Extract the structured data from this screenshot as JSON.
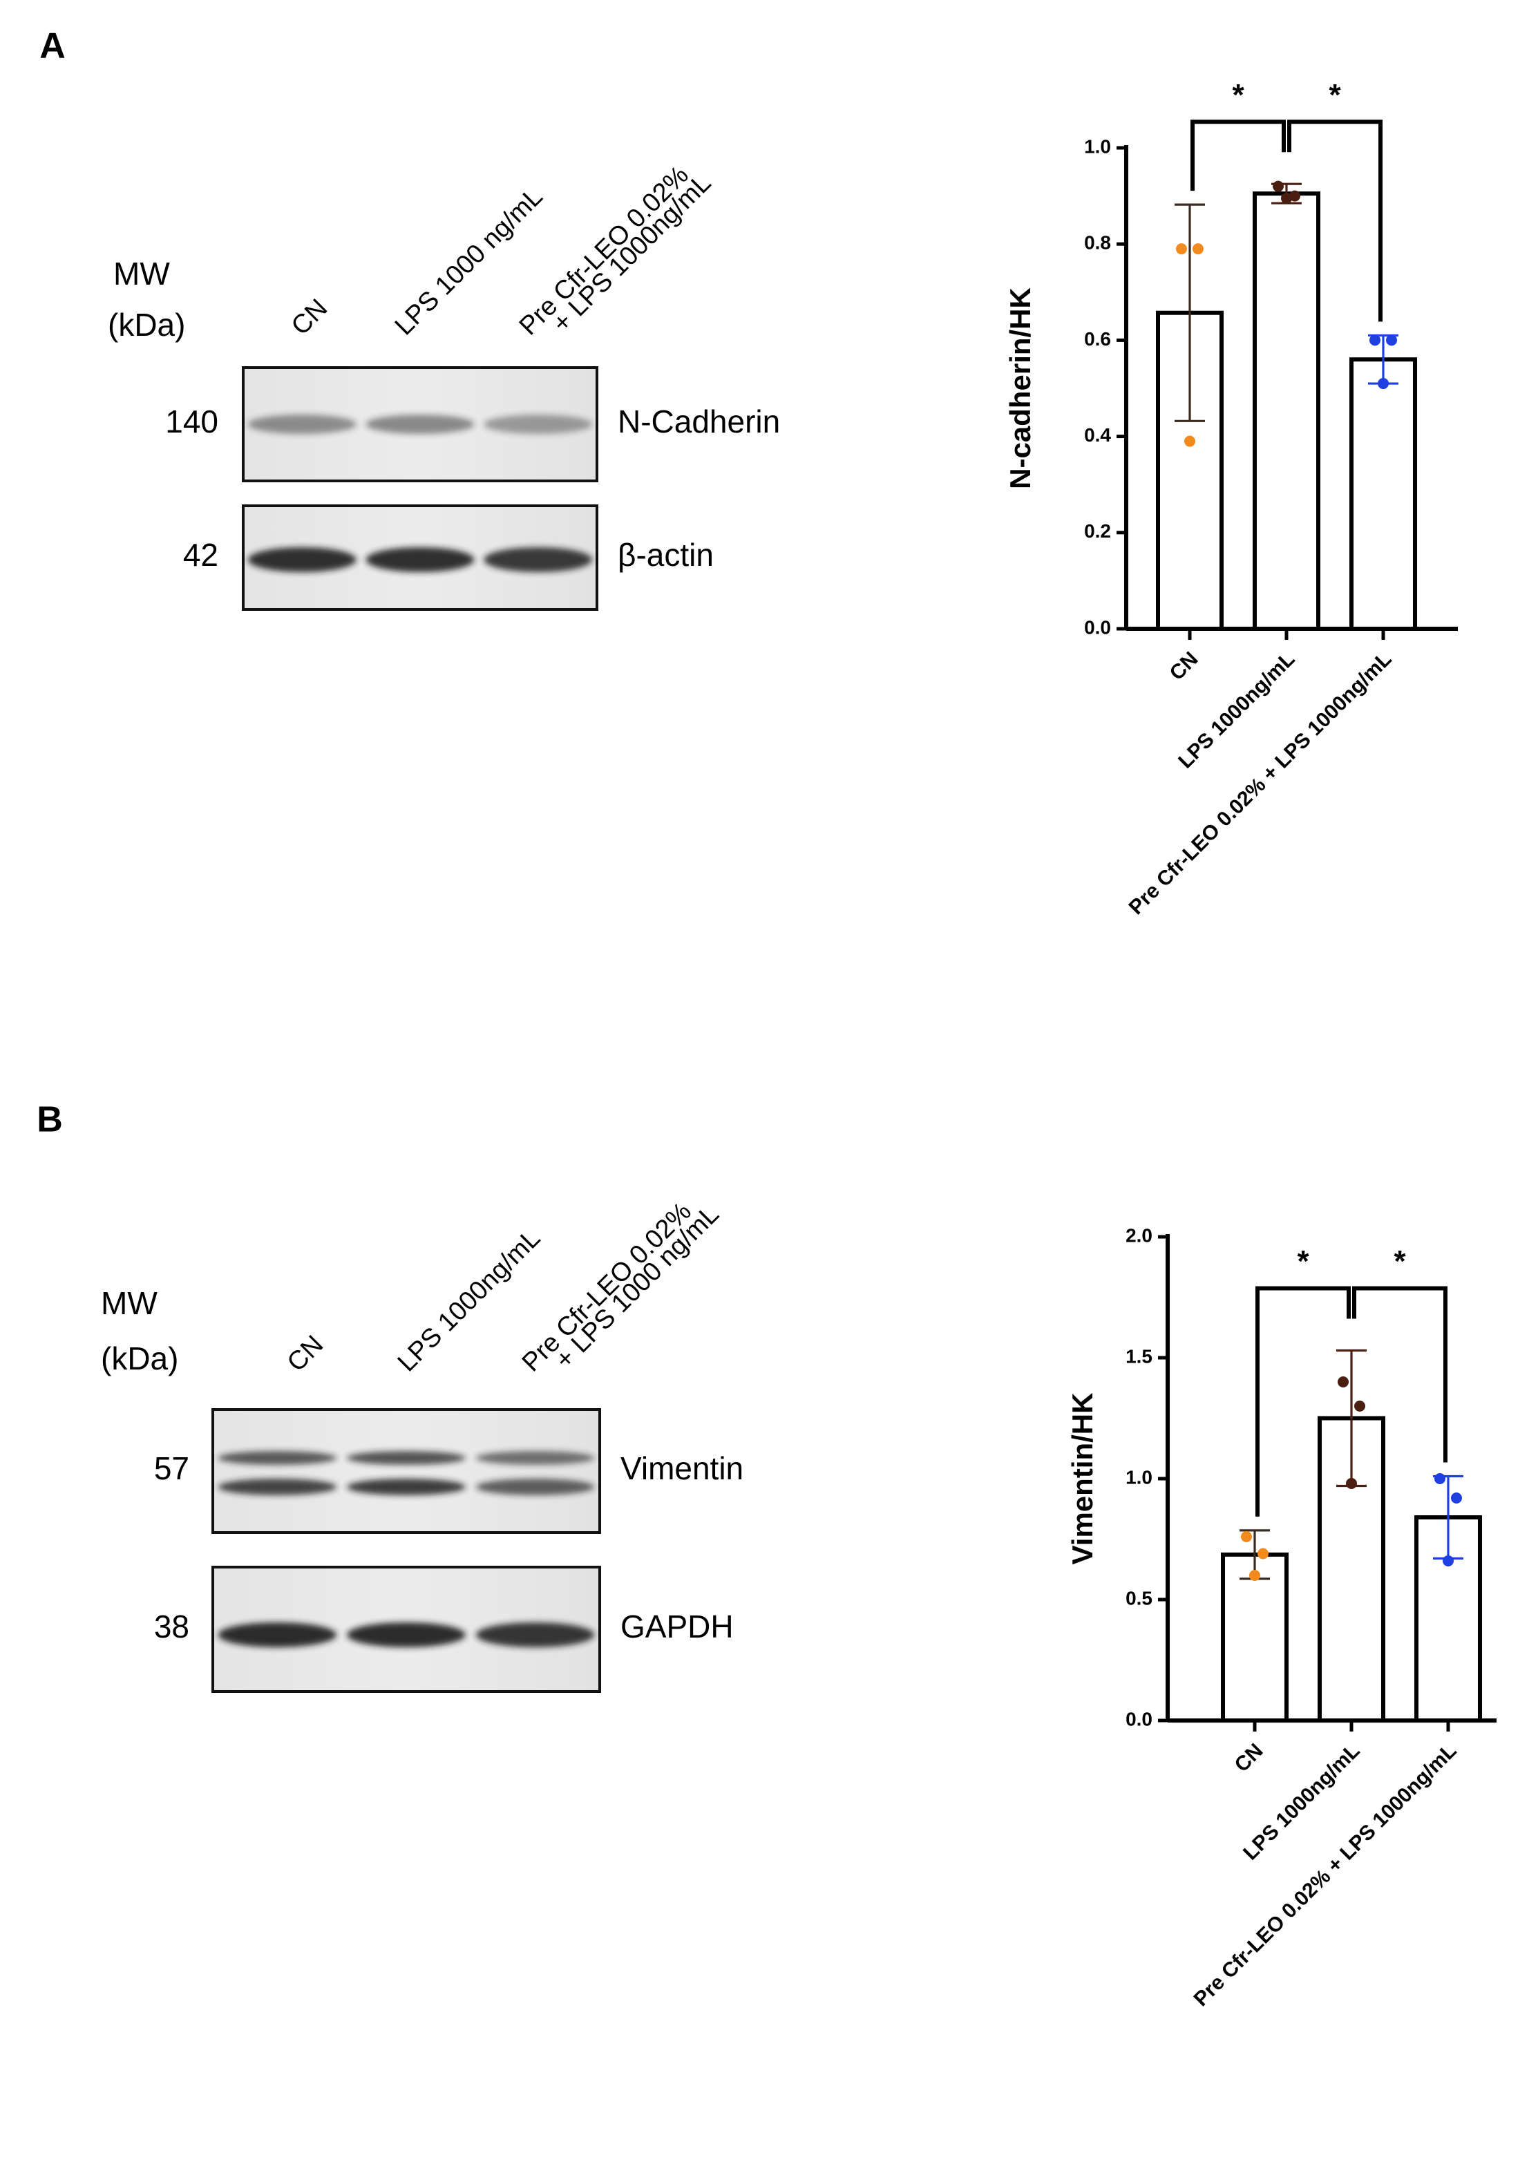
{
  "panels": [
    {
      "label": "A",
      "blot": {
        "mw_header": [
          "MW",
          "(kDa)"
        ],
        "lanes": [
          [
            "CN"
          ],
          [
            "LPS 1000 ng/mL"
          ],
          [
            "Pre Cfr-LEO 0.02%",
            "+ LPS 1000ng/mL"
          ]
        ],
        "rows": [
          {
            "mw": "140",
            "protein": "N-Cadherin"
          },
          {
            "mw": "42",
            "protein": "β-actin"
          }
        ]
      }
    },
    {
      "label": "B",
      "blot": {
        "mw_header": [
          "MW",
          "(kDa)"
        ],
        "lanes": [
          [
            "CN"
          ],
          [
            "LPS 1000ng/mL"
          ],
          [
            "Pre Cfr-LEO 0.02%",
            "+ LPS 1000 ng/mL"
          ]
        ],
        "rows": [
          {
            "mw": "57",
            "protein": "Vimentin"
          },
          {
            "mw": "38",
            "protein": "GAPDH"
          }
        ]
      }
    }
  ],
  "chart_data": [
    {
      "type": "bar",
      "ylabel": "N-cadherin/HK",
      "categories": [
        "CN",
        "LPS 1000ng/mL",
        "Pre Cfr-LEO 0.02% + LPS 1000ng/mL"
      ],
      "values": [
        0.657,
        0.905,
        0.56
      ],
      "errors": [
        0.225,
        0.02,
        0.05
      ],
      "points": [
        [
          0.79,
          0.79,
          0.39
        ],
        [
          0.92,
          0.9,
          0.895
        ],
        [
          0.6,
          0.6,
          0.51
        ]
      ],
      "point_colors": [
        "#f28a1e",
        "#4a1e10",
        "#1f3fe0"
      ],
      "error_colors": [
        "#3a2a20",
        "#4a1e10",
        "#1f3fe0"
      ],
      "color": "#000000",
      "ylim": [
        0,
        1
      ],
      "yticks": [
        {
          "value": 0,
          "label": "0.0"
        },
        {
          "value": 0.2,
          "label": "0.2"
        },
        {
          "value": 0.4,
          "label": "0.4"
        },
        {
          "value": 0.6,
          "label": "0.6"
        },
        {
          "value": 0.8,
          "label": "0.8"
        },
        {
          "value": 1,
          "label": "1.0"
        }
      ],
      "significance": [
        "*",
        "*"
      ]
    },
    {
      "type": "bar",
      "ylabel": "Vimentin/HK",
      "categories": [
        "CN",
        "LPS 1000ng/mL",
        "Pre Cfr-LEO 0.02% + LPS 1000ng/mL"
      ],
      "values": [
        0.686,
        1.25,
        0.84
      ],
      "errors": [
        0.1,
        0.28,
        0.17
      ],
      "points": [
        [
          0.76,
          0.69,
          0.6
        ],
        [
          1.4,
          1.3,
          0.98
        ],
        [
          1.0,
          0.92,
          0.66
        ]
      ],
      "point_colors": [
        "#f28a1e",
        "#4a1e10",
        "#1f3fe0"
      ],
      "error_colors": [
        "#3a2a20",
        "#4a1e10",
        "#1f3fe0"
      ],
      "color": "#000000",
      "ylim": [
        0,
        2
      ],
      "yticks": [
        {
          "value": 0,
          "label": "0.0"
        },
        {
          "value": 0.5,
          "label": "0.5"
        },
        {
          "value": 1,
          "label": "1.0"
        },
        {
          "value": 1.5,
          "label": "1.5"
        },
        {
          "value": 2,
          "label": "2.0"
        }
      ],
      "significance": [
        "*",
        "*"
      ]
    }
  ]
}
